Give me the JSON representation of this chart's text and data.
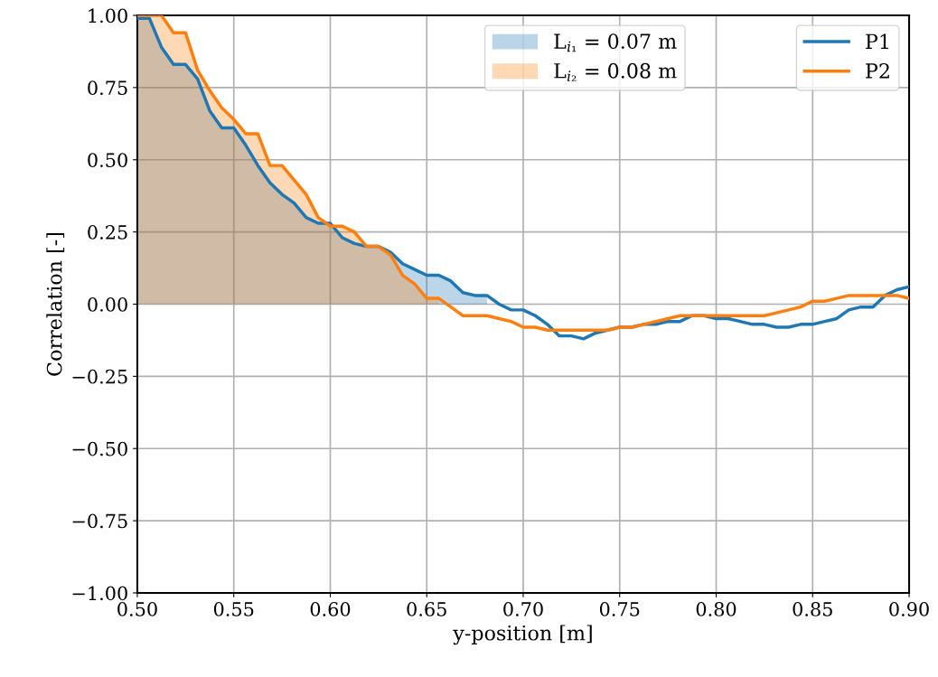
{
  "chart_data": {
    "type": "line",
    "xlabel": "y-position [m]",
    "ylabel": "Correlation [-]",
    "x": [
      0.5,
      0.50625,
      0.5125,
      0.51875,
      0.525,
      0.53125,
      0.5375,
      0.54375,
      0.55,
      0.55625,
      0.5625,
      0.56875,
      0.575,
      0.58125,
      0.5875,
      0.59375,
      0.6,
      0.60625,
      0.6125,
      0.61875,
      0.625,
      0.63125,
      0.6375,
      0.64375,
      0.65,
      0.65625,
      0.6625,
      0.66875,
      0.675,
      0.68125,
      0.6875,
      0.69375,
      0.7,
      0.70625,
      0.7125,
      0.71875,
      0.725,
      0.73125,
      0.7375,
      0.74375,
      0.75,
      0.75625,
      0.7625,
      0.76875,
      0.775,
      0.78125,
      0.7875,
      0.79375,
      0.8,
      0.80625,
      0.8125,
      0.81875,
      0.825,
      0.83125,
      0.8375,
      0.84375,
      0.85,
      0.85625,
      0.8625,
      0.86875,
      0.875,
      0.88125,
      0.8875,
      0.89375,
      0.9
    ],
    "series": [
      {
        "type": "area",
        "name": "L$_{i₁}$ = 0.07 m",
        "color": "#1f77b4",
        "values": [
          0.99,
          0.99,
          0.89,
          0.83,
          0.83,
          0.78,
          0.67,
          0.61,
          0.61,
          0.55,
          0.48,
          0.42,
          0.38,
          0.35,
          0.3,
          0.28,
          0.28,
          0.23,
          0.21,
          0.2,
          0.2,
          0.18,
          0.14,
          0.12,
          0.1,
          0.1,
          0.08,
          0.04,
          0.03,
          0.03,
          null,
          null,
          null,
          null,
          null,
          null,
          null,
          null,
          null,
          null,
          null,
          null,
          null,
          null,
          null,
          null,
          null,
          null,
          null,
          null,
          null,
          null,
          null,
          null,
          null,
          null,
          null,
          null,
          null,
          null,
          null,
          null,
          null,
          null,
          null
        ]
      },
      {
        "type": "area",
        "name": "L$_{i₂}$ = 0.08 m",
        "color": "#ff7f0e",
        "values": [
          1.0,
          1.0,
          1.0,
          0.94,
          0.94,
          0.81,
          0.74,
          0.68,
          0.64,
          0.59,
          0.59,
          0.48,
          0.48,
          0.43,
          0.38,
          0.3,
          0.27,
          0.27,
          0.25,
          0.2,
          0.2,
          0.17,
          0.1,
          0.07,
          0.02,
          0.02,
          null,
          null,
          null,
          null,
          null,
          null,
          null,
          null,
          null,
          null,
          null,
          null,
          null,
          null,
          null,
          null,
          null,
          null,
          null,
          null,
          null,
          null,
          null,
          null,
          null,
          null,
          null,
          null,
          null,
          null,
          null,
          null,
          null,
          null,
          null,
          null,
          null,
          null,
          null
        ]
      },
      {
        "name": "P1",
        "color": "#1f77b4",
        "values": [
          0.99,
          0.99,
          0.89,
          0.83,
          0.83,
          0.78,
          0.67,
          0.61,
          0.61,
          0.55,
          0.48,
          0.42,
          0.38,
          0.35,
          0.3,
          0.28,
          0.28,
          0.23,
          0.21,
          0.2,
          0.2,
          0.18,
          0.14,
          0.12,
          0.1,
          0.1,
          0.08,
          0.04,
          0.03,
          0.03,
          0.0,
          -0.02,
          -0.02,
          -0.04,
          -0.07,
          -0.11,
          -0.11,
          -0.12,
          -0.1,
          -0.09,
          -0.08,
          -0.08,
          -0.07,
          -0.07,
          -0.06,
          -0.06,
          -0.04,
          -0.04,
          -0.05,
          -0.05,
          -0.06,
          -0.07,
          -0.07,
          -0.08,
          -0.08,
          -0.07,
          -0.07,
          -0.06,
          -0.05,
          -0.02,
          -0.01,
          -0.01,
          0.03,
          0.05,
          0.06
        ]
      },
      {
        "name": "P2",
        "color": "#ff7f0e",
        "values": [
          1.0,
          1.0,
          1.0,
          0.94,
          0.94,
          0.81,
          0.74,
          0.68,
          0.64,
          0.59,
          0.59,
          0.48,
          0.48,
          0.43,
          0.38,
          0.3,
          0.27,
          0.27,
          0.25,
          0.2,
          0.2,
          0.17,
          0.1,
          0.07,
          0.02,
          0.02,
          -0.01,
          -0.04,
          -0.04,
          -0.04,
          -0.05,
          -0.06,
          -0.08,
          -0.08,
          -0.09,
          -0.09,
          -0.09,
          -0.09,
          -0.09,
          -0.09,
          -0.08,
          -0.08,
          -0.07,
          -0.06,
          -0.05,
          -0.04,
          -0.04,
          -0.04,
          -0.04,
          -0.04,
          -0.04,
          -0.04,
          -0.04,
          -0.03,
          -0.02,
          -0.01,
          0.01,
          0.01,
          0.02,
          0.03,
          0.03,
          0.03,
          0.03,
          0.03,
          0.02
        ]
      }
    ],
    "xlim": [
      0.5,
      0.9
    ],
    "xticks": [
      {
        "value": 0.5,
        "label": "0.50"
      },
      {
        "value": 0.55,
        "label": "0.55"
      },
      {
        "value": 0.6,
        "label": "0.60"
      },
      {
        "value": 0.65,
        "label": "0.65"
      },
      {
        "value": 0.7,
        "label": "0.70"
      },
      {
        "value": 0.75,
        "label": "0.75"
      },
      {
        "value": 0.8,
        "label": "0.80"
      },
      {
        "value": 0.85,
        "label": "0.85"
      },
      {
        "value": 0.9,
        "label": "0.90"
      }
    ],
    "ylim": [
      -1.0,
      1.0
    ],
    "yticks": [
      {
        "value": -1.0,
        "label": "−1.00"
      },
      {
        "value": -0.75,
        "label": "−0.75"
      },
      {
        "value": -0.5,
        "label": "−0.50"
      },
      {
        "value": -0.25,
        "label": "−0.25"
      },
      {
        "value": 0.0,
        "label": "0.00"
      },
      {
        "value": 0.25,
        "label": "0.25"
      },
      {
        "value": 0.5,
        "label": "0.50"
      },
      {
        "value": 0.75,
        "label": "0.75"
      },
      {
        "value": 1.0,
        "label": "1.00"
      }
    ],
    "grid": true,
    "legend": "top right"
  }
}
